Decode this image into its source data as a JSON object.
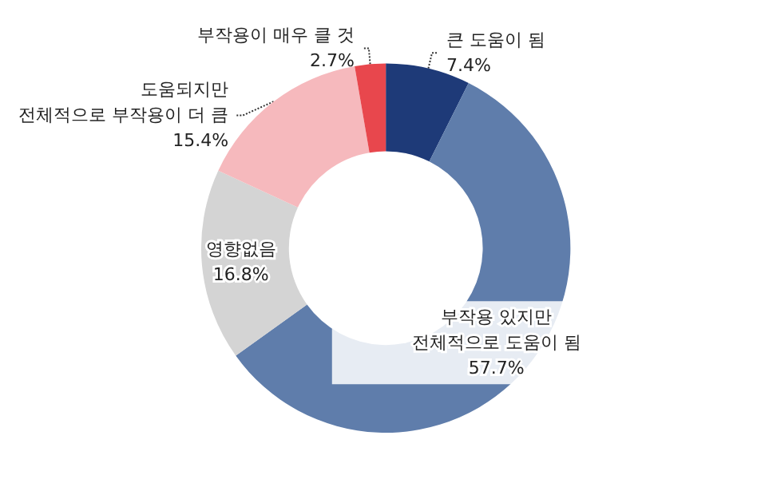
{
  "chart_data": {
    "type": "donut",
    "categories": [
      "큰 도움이 됨",
      "부작용 있지만\n전체적으로 도움이 됨",
      "영향없음",
      "도움되지만\n전체적으로 부작용이 더 큼",
      "부작용이 매우 클 것"
    ],
    "values": [
      7.4,
      57.7,
      16.8,
      15.4,
      2.7
    ],
    "value_labels": [
      "7.4%",
      "57.7%",
      "16.8%",
      "15.4%",
      "2.7%"
    ],
    "colors": [
      "#1e3a78",
      "#5f7dab",
      "#d4d4d4",
      "#f6b9bd",
      "#e8474d"
    ],
    "legend": false
  }
}
